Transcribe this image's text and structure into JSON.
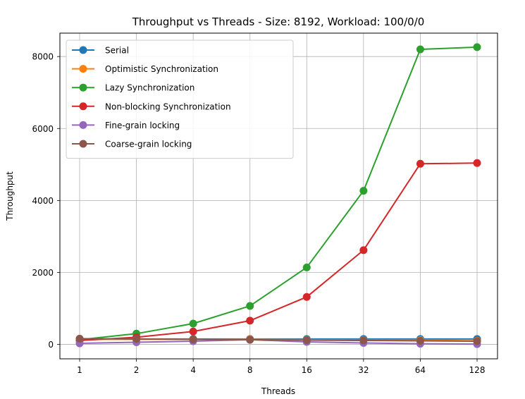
{
  "chart_data": {
    "type": "line",
    "title": "Throughput vs Threads - Size: 8192, Workload: 100/0/0",
    "xlabel": "Threads",
    "ylabel": "Throughput",
    "categories": [
      "1",
      "2",
      "4",
      "8",
      "16",
      "32",
      "64",
      "128"
    ],
    "ylim": [
      -400,
      8650
    ],
    "yticks": [
      0,
      2000,
      4000,
      6000,
      8000
    ],
    "grid": true,
    "legend_position": "top-left",
    "series": [
      {
        "name": "Serial",
        "color": "#1f77b4",
        "values": [
          150,
          150,
          150,
          150,
          150,
          150,
          150,
          150
        ]
      },
      {
        "name": "Optimistic Synchronization",
        "color": "#ff7f0e",
        "values": [
          140,
          140,
          140,
          140,
          130,
          120,
          120,
          100
        ]
      },
      {
        "name": "Lazy Synchronization",
        "color": "#2ca02c",
        "values": [
          130,
          300,
          580,
          1070,
          2140,
          4270,
          8200,
          8260
        ]
      },
      {
        "name": "Non-blocking Synchronization",
        "color": "#d62728",
        "values": [
          110,
          200,
          360,
          660,
          1320,
          2620,
          5020,
          5040
        ]
      },
      {
        "name": "Fine-grain locking",
        "color": "#9467bd",
        "values": [
          30,
          60,
          90,
          130,
          70,
          40,
          20,
          10
        ]
      },
      {
        "name": "Coarse-grain locking",
        "color": "#8c564b",
        "values": [
          160,
          150,
          140,
          130,
          120,
          110,
          100,
          90
        ]
      }
    ]
  }
}
